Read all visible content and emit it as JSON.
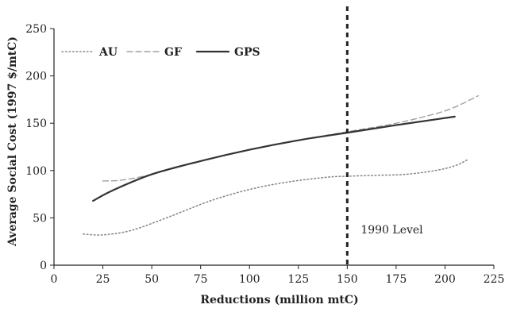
{
  "chart_data": {
    "type": "line",
    "title": "",
    "xlabel": "Reductions (million mtC)",
    "ylabel": "Average Social Cost (1997 $/mtC)",
    "xlim": [
      0,
      225
    ],
    "ylim": [
      0,
      250
    ],
    "x_ticks": [
      0,
      25,
      50,
      75,
      100,
      125,
      150,
      175,
      200,
      225
    ],
    "y_ticks": [
      0,
      50,
      100,
      150,
      200,
      250
    ],
    "grid": false,
    "legend_position": "top-left",
    "series": [
      {
        "name": "AU",
        "style": "dotted",
        "color": "#8a8a8a",
        "points": [
          [
            15,
            33
          ],
          [
            25,
            32
          ],
          [
            40,
            37
          ],
          [
            60,
            52
          ],
          [
            80,
            68
          ],
          [
            100,
            80
          ],
          [
            120,
            88
          ],
          [
            140,
            93
          ],
          [
            150,
            94
          ],
          [
            165,
            95
          ],
          [
            180,
            96
          ],
          [
            195,
            100
          ],
          [
            205,
            105
          ],
          [
            212,
            112
          ]
        ]
      },
      {
        "name": "GF",
        "style": "dashed",
        "color": "#a0a0a0",
        "points": [
          [
            25,
            89
          ],
          [
            35,
            90
          ],
          [
            50,
            96
          ],
          [
            75,
            110
          ],
          [
            100,
            122
          ],
          [
            125,
            132
          ],
          [
            150,
            141
          ],
          [
            175,
            150
          ],
          [
            195,
            160
          ],
          [
            205,
            167
          ],
          [
            217,
            179
          ]
        ]
      },
      {
        "name": "GPS",
        "style": "solid",
        "color": "#333333",
        "points": [
          [
            20,
            68
          ],
          [
            30,
            79
          ],
          [
            50,
            96
          ],
          [
            75,
            110
          ],
          [
            100,
            122
          ],
          [
            125,
            132
          ],
          [
            150,
            140
          ],
          [
            175,
            148
          ],
          [
            195,
            154
          ],
          [
            205,
            157
          ]
        ]
      }
    ],
    "reference_line": {
      "x": 150,
      "label": "1990 Level"
    }
  }
}
